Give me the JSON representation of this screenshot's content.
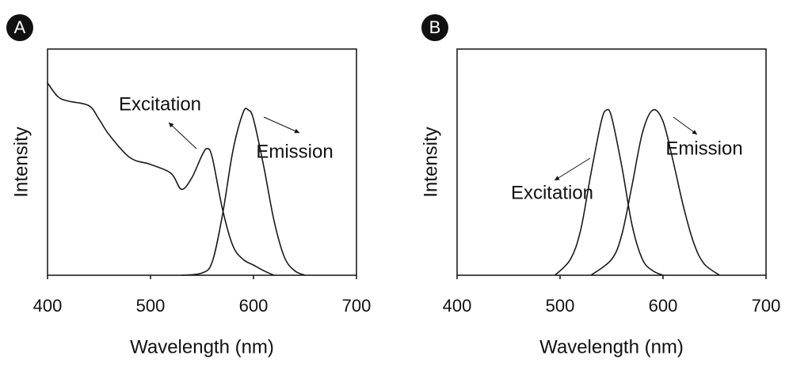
{
  "chart_data": [
    {
      "type": "line",
      "panel_label": "A",
      "xlabel": "Wavelength (nm)",
      "ylabel": "Intensity",
      "xlim": [
        400,
        700
      ],
      "xticks": [
        400,
        500,
        600,
        700
      ],
      "ylim": [
        0,
        1
      ],
      "series": [
        {
          "name": "Excitation",
          "color": "#1a1a1a",
          "x": [
            400,
            410,
            420,
            440,
            450,
            460,
            480,
            500,
            520,
            530,
            540,
            550,
            555,
            560,
            570,
            580,
            590,
            600,
            610,
            620
          ],
          "values": [
            0.85,
            0.79,
            0.77,
            0.75,
            0.69,
            0.62,
            0.52,
            0.49,
            0.45,
            0.38,
            0.43,
            0.53,
            0.56,
            0.52,
            0.29,
            0.13,
            0.07,
            0.045,
            0.02,
            0
          ]
        },
        {
          "name": "Emission",
          "color": "#1a1a1a",
          "x": [
            530,
            550,
            560,
            570,
            580,
            590,
            595,
            600,
            610,
            620,
            630,
            640,
            650
          ],
          "values": [
            0,
            0.01,
            0.06,
            0.27,
            0.55,
            0.72,
            0.73,
            0.69,
            0.48,
            0.24,
            0.08,
            0.02,
            0
          ]
        }
      ]
    },
    {
      "type": "line",
      "panel_label": "B",
      "xlabel": "Wavelength (nm)",
      "ylabel": "Intensity",
      "xlim": [
        400,
        700
      ],
      "xticks": [
        400,
        500,
        600,
        700
      ],
      "ylim": [
        0,
        1
      ],
      "series": [
        {
          "name": "Excitation",
          "color": "#1a1a1a",
          "x": [
            495,
            510,
            520,
            530,
            540,
            545,
            550,
            560,
            570,
            580,
            590,
            600
          ],
          "values": [
            0,
            0.07,
            0.2,
            0.45,
            0.68,
            0.73,
            0.7,
            0.48,
            0.22,
            0.07,
            0.02,
            0
          ]
        },
        {
          "name": "Emission",
          "color": "#1a1a1a",
          "x": [
            530,
            550,
            560,
            570,
            580,
            590,
            600,
            610,
            620,
            630,
            640,
            655
          ],
          "values": [
            0,
            0.07,
            0.18,
            0.4,
            0.63,
            0.73,
            0.68,
            0.5,
            0.3,
            0.14,
            0.05,
            0
          ]
        }
      ]
    }
  ]
}
